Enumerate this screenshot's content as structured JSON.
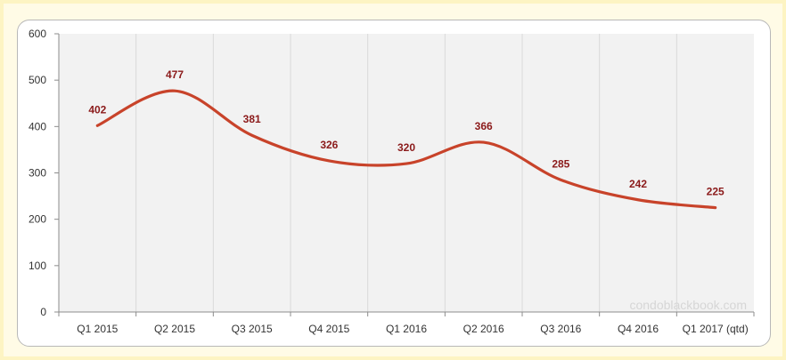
{
  "chart_data": {
    "type": "line",
    "title": "",
    "xlabel": "",
    "ylabel": "",
    "categories": [
      "Q1 2015",
      "Q2 2015",
      "Q3 2015",
      "Q4 2015",
      "Q1 2016",
      "Q2 2016",
      "Q3 2016",
      "Q4 2016",
      "Q1 2017 (qtd)"
    ],
    "series": [
      {
        "values": [
          402,
          477,
          381,
          326,
          320,
          366,
          285,
          242,
          225
        ]
      }
    ],
    "data_labels": [
      "402",
      "477",
      "381",
      "326",
      "320",
      "366",
      "285",
      "242",
      "225"
    ],
    "ylim": [
      0,
      600
    ],
    "yticks": [
      0,
      100,
      200,
      300,
      400,
      500,
      600
    ],
    "ytick_labels": [
      "0",
      "100",
      "200",
      "300",
      "400",
      "500",
      "600"
    ],
    "grid": "vertical",
    "legend": "none",
    "colors": {
      "line": "#c8432a",
      "label": "#8b1a1a",
      "plot_bg": "#f2f2f2",
      "grid": "#d9d9d9"
    }
  },
  "watermark": "condoblackbook.com"
}
